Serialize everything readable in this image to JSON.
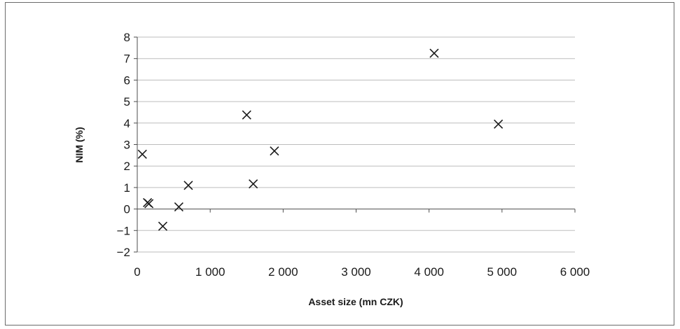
{
  "chart_data": {
    "type": "scatter",
    "title": "",
    "xlabel": "Asset size (mn CZK)",
    "ylabel": "NIM (%)",
    "xlim": [
      0,
      6000
    ],
    "ylim": [
      -2,
      8
    ],
    "x_ticks": [
      0,
      1000,
      2000,
      3000,
      4000,
      5000,
      6000
    ],
    "x_tick_labels": [
      "0",
      "1 000",
      "2 000",
      "3 000",
      "4 000",
      "5 000",
      "6 000"
    ],
    "y_ticks": [
      -2,
      -1,
      0,
      1,
      2,
      3,
      4,
      5,
      6,
      7,
      8
    ],
    "y_tick_labels": [
      "−2",
      "−1",
      "0",
      "1",
      "2",
      "3",
      "4",
      "5",
      "6",
      "7",
      "8"
    ],
    "grid": "horizontal",
    "legend": "none",
    "marker": "x",
    "colors": {
      "marker": "#1a1a1a",
      "grid": "#bdbdbd",
      "axis": "#4d4d4d",
      "frame": "#6b6b6b"
    },
    "points": [
      {
        "x": 70,
        "y": 2.55
      },
      {
        "x": 140,
        "y": 0.3
      },
      {
        "x": 160,
        "y": 0.25
      },
      {
        "x": 350,
        "y": -0.8
      },
      {
        "x": 570,
        "y": 0.1
      },
      {
        "x": 700,
        "y": 1.1
      },
      {
        "x": 1500,
        "y": 4.38
      },
      {
        "x": 1590,
        "y": 1.17
      },
      {
        "x": 1880,
        "y": 2.7
      },
      {
        "x": 4070,
        "y": 7.25
      },
      {
        "x": 4950,
        "y": 3.95
      }
    ]
  }
}
